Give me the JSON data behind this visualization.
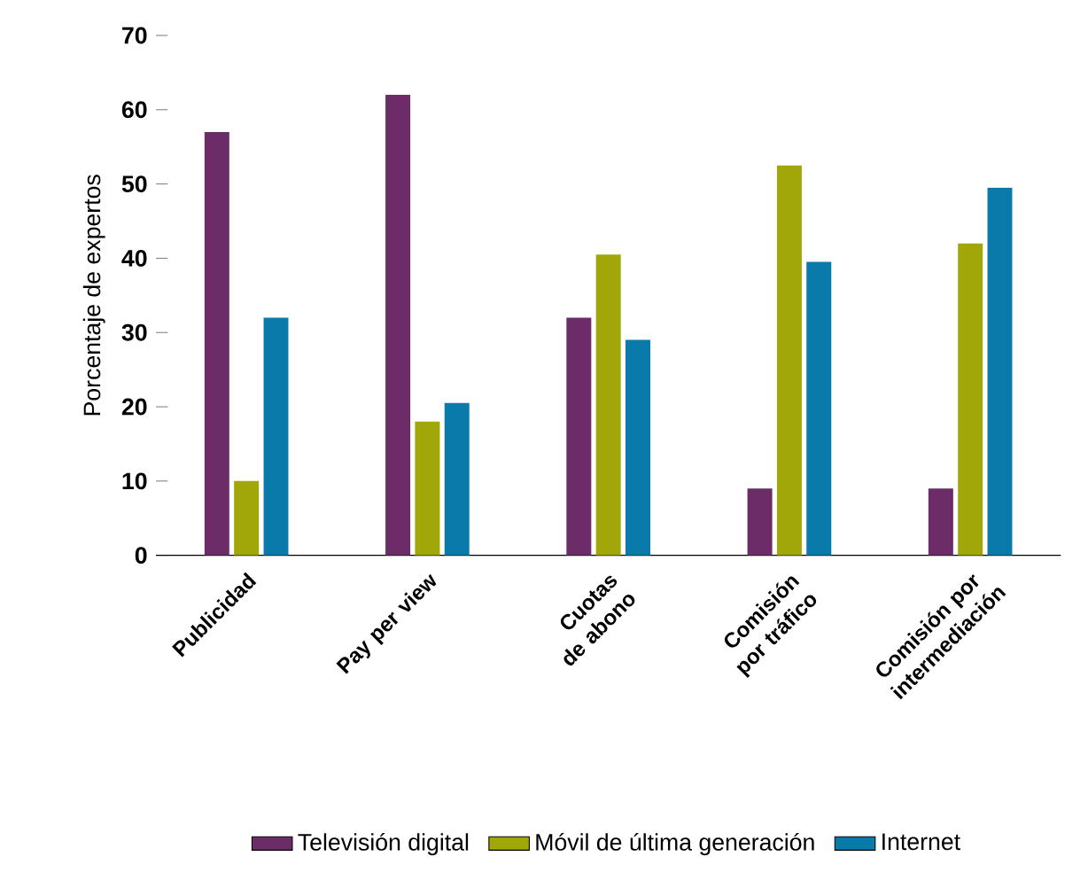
{
  "chart_data": {
    "type": "bar",
    "ylabel": "Porcentaje de expertos",
    "categories": [
      "Publicidad",
      "Pay per view",
      "Cuotas de abono",
      "Comisión por tráfico",
      "Comisión por intermediación"
    ],
    "series": [
      {
        "name": "Televisión digital",
        "color": "#6c2c68",
        "values": [
          57,
          62,
          32,
          9,
          9
        ]
      },
      {
        "name": "Móvil de última generación",
        "color": "#a1a709",
        "values": [
          10,
          18,
          40.5,
          52.5,
          42
        ]
      },
      {
        "name": "Internet",
        "color": "#0a7aab",
        "values": [
          32,
          20.5,
          29,
          39.5,
          49.5
        ]
      }
    ],
    "ylim": [
      0,
      70
    ],
    "yticks": [
      0,
      10,
      20,
      30,
      40,
      50,
      60,
      70
    ],
    "legend": "bottom",
    "grid": false
  }
}
